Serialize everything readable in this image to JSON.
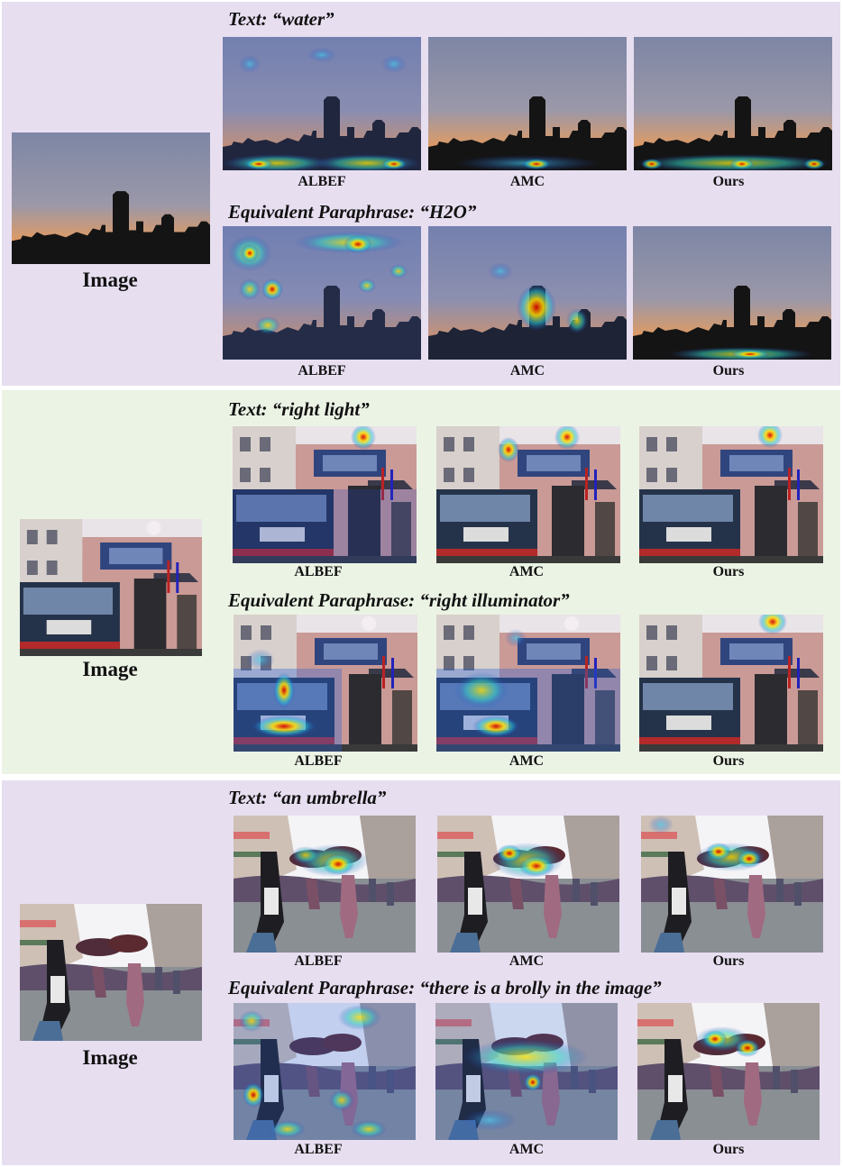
{
  "figure": {
    "rows": [
      {
        "image_caption": "Image",
        "text_query": "Text: “water”",
        "paraphrase_query": "Equivalent Paraphrase: “H2O”",
        "methods": [
          "ALBEF",
          "AMC",
          "Ours"
        ]
      },
      {
        "image_caption": "Image",
        "text_query": "Text: “right light”",
        "paraphrase_query": "Equivalent Paraphrase: “right illuminator”",
        "methods": [
          "ALBEF",
          "AMC",
          "Ours"
        ]
      },
      {
        "image_caption": "Image",
        "text_query": "Text: “an umbrella”",
        "paraphrase_query": "Equivalent Paraphrase: “there is a brolly in the image”",
        "methods": [
          "ALBEF",
          "AMC",
          "Ours"
        ]
      }
    ]
  },
  "colors": {
    "panel_purple": "#e7def0",
    "panel_green": "#ebf3e5"
  }
}
